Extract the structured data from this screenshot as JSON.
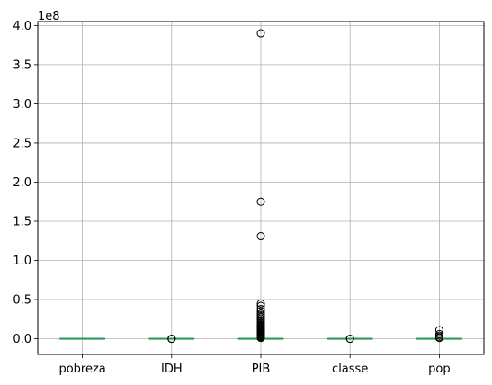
{
  "chart_data": {
    "type": "box",
    "title": "",
    "xlabel": "",
    "ylabel": "",
    "offset_label": "1e8",
    "categories": [
      "pobreza",
      "IDH",
      "PIB",
      "classe",
      "pop"
    ],
    "ylim": [
      -0.2,
      4.05
    ],
    "yticks": [
      0.0,
      0.5,
      1.0,
      1.5,
      2.0,
      2.5,
      3.0,
      3.5,
      4.0
    ],
    "ytick_labels": [
      "0.0",
      "0.5",
      "1.0",
      "1.5",
      "2.0",
      "2.5",
      "3.0",
      "3.5",
      "4.0"
    ],
    "grid": true,
    "median_color": "#2ca02c",
    "box_color": "#1f77b4",
    "boxes": [
      {
        "label": "pobreza",
        "median": 0.0,
        "q1": 0.0,
        "q3": 0.0,
        "whisker_low": 0.0,
        "whisker_high": 0.0,
        "outliers": []
      },
      {
        "label": "IDH",
        "median": 0.0,
        "q1": 0.0,
        "q3": 0.0,
        "whisker_low": 0.0,
        "whisker_high": 0.0,
        "outliers": [
          0.0,
          0.0,
          0.0
        ]
      },
      {
        "label": "PIB",
        "median": 0.0,
        "q1": 0.0,
        "q3": 0.0,
        "whisker_low": 0.0,
        "whisker_high": 0.0,
        "outliers": [
          3.9,
          1.75,
          1.31,
          0.45,
          0.42,
          0.38,
          0.35,
          0.32,
          0.3,
          0.28,
          0.26,
          0.24,
          0.22,
          0.2,
          0.18,
          0.17,
          0.16,
          0.15,
          0.14,
          0.13,
          0.12,
          0.11,
          0.1,
          0.09,
          0.08,
          0.07,
          0.06,
          0.05,
          0.04,
          0.03,
          0.02,
          0.01
        ]
      },
      {
        "label": "classe",
        "median": 0.0,
        "q1": 0.0,
        "q3": 0.0,
        "whisker_low": 0.0,
        "whisker_high": 0.0,
        "outliers": [
          0.0,
          0.0
        ]
      },
      {
        "label": "pop",
        "median": 0.0,
        "q1": 0.0,
        "q3": 0.0,
        "whisker_low": 0.0,
        "whisker_high": 0.0,
        "outliers": [
          0.11,
          0.06,
          0.04,
          0.02,
          0.01
        ]
      }
    ]
  }
}
